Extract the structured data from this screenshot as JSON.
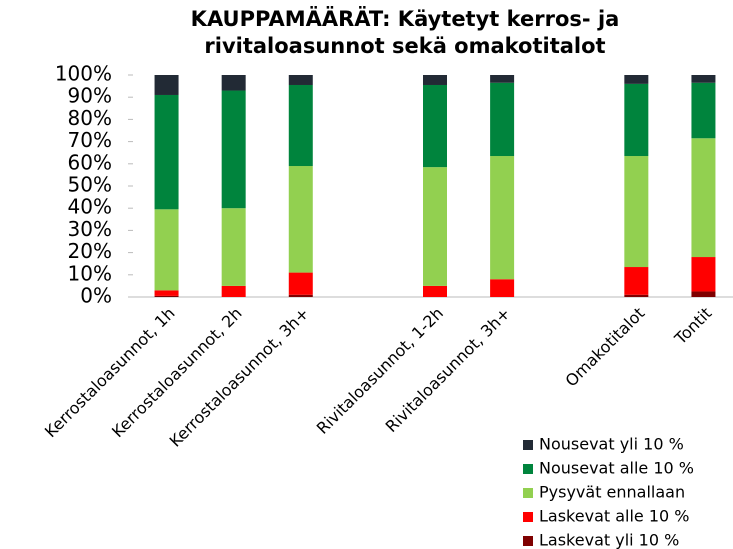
{
  "chart_data": {
    "type": "stacked_bar",
    "title": "KAUPPAMÄÄRÄT: Käytetyt kerros- ja rivitaloasunnot sekä omakotitalot",
    "categories": [
      "Kerrostaloasunnot, 1h",
      "Kerrostaloasunnot, 2h",
      "Kerrostaloasunnot, 3h+",
      null,
      "Rivitaloasunnot, 1-2h",
      "Rivitaloasunnot, 3h+",
      null,
      "Omakotitalot",
      "Tontit"
    ],
    "series": [
      {
        "name": "Laskevat yli 10 %",
        "color": "#7f0000",
        "values": [
          0.5,
          0,
          1,
          null,
          0,
          0,
          null,
          1,
          2.5
        ]
      },
      {
        "name": "Laskevat alle 10 %",
        "color": "#ff0000",
        "values": [
          2.5,
          5,
          10,
          null,
          5,
          8,
          null,
          12.5,
          15.5
        ]
      },
      {
        "name": "Pysyvät ennallaan",
        "color": "#92d050",
        "values": [
          36.5,
          35,
          48,
          null,
          53.5,
          55.5,
          null,
          50,
          53.5
        ]
      },
      {
        "name": "Nousevat alle 10 %",
        "color": "#00843d",
        "values": [
          51.5,
          53,
          36.5,
          null,
          37,
          33,
          null,
          32.5,
          25
        ]
      },
      {
        "name": "Nousevat yli 10 %",
        "color": "#222a35",
        "values": [
          9,
          7,
          4.5,
          null,
          4.5,
          3.5,
          null,
          4,
          3.5
        ]
      }
    ],
    "ylim": [
      0,
      100
    ],
    "yticks": [
      {
        "value": 0,
        "label": "0%"
      },
      {
        "value": 10,
        "label": "10%"
      },
      {
        "value": 20,
        "label": "20%"
      },
      {
        "value": 30,
        "label": "30%"
      },
      {
        "value": 40,
        "label": "40%"
      },
      {
        "value": 50,
        "label": "50%"
      },
      {
        "value": 60,
        "label": "60%"
      },
      {
        "value": 70,
        "label": "70%"
      },
      {
        "value": 80,
        "label": "80%"
      },
      {
        "value": 90,
        "label": "90%"
      },
      {
        "value": 100,
        "label": "100%"
      }
    ],
    "legend": "bottom-right"
  }
}
